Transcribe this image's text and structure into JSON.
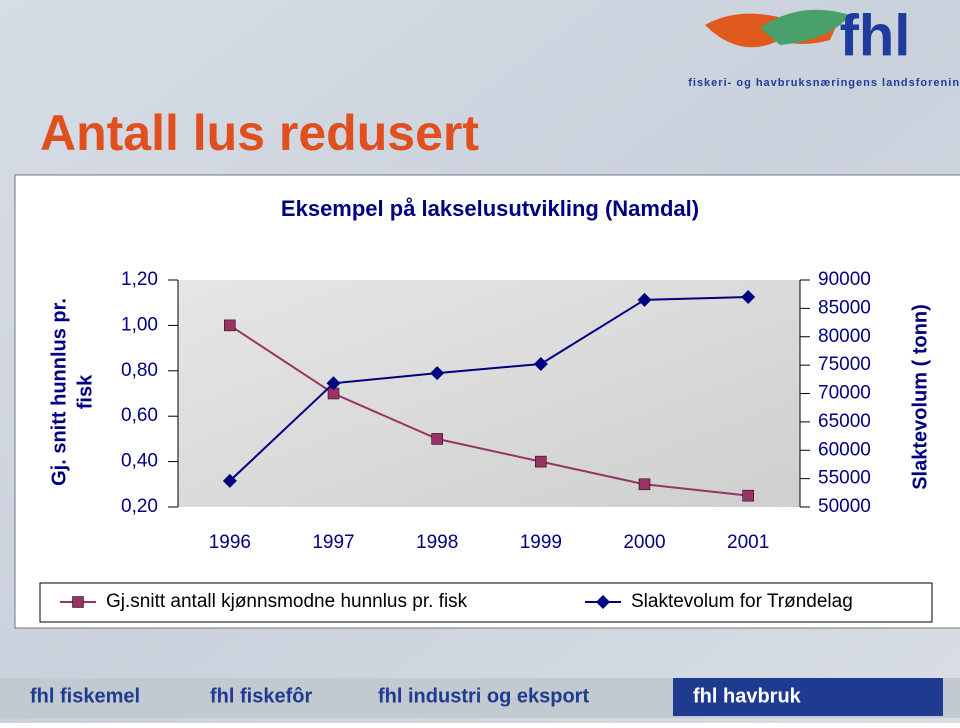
{
  "slide": {
    "title": "Antall lus redusert",
    "logo": "fhl",
    "tagline": "fiskeri- og havbruksnæringens landsforening",
    "footer": [
      "fhl fiskemel",
      "fhl fiskefôr",
      "fhl industri og eksport",
      "fhl havbruk"
    ]
  },
  "chart_data": {
    "type": "line",
    "title": "Eksempel på lakselusutvikling (Namdal)",
    "categories": [
      "1996",
      "1997",
      "1998",
      "1999",
      "2000",
      "2001"
    ],
    "series": [
      {
        "name": "Gj.snitt antall kjønnsmodne hunnlus pr. fisk",
        "color": "#993366",
        "marker": "square",
        "values": [
          1.0,
          0.7,
          0.5,
          0.4,
          0.3,
          0.25
        ]
      },
      {
        "name": "Slaktevolum for Trøndelag",
        "color": "#000080",
        "marker": "diamond",
        "axis": "y2",
        "values": [
          54600,
          71800,
          73600,
          75200,
          86500,
          87000
        ]
      }
    ],
    "ylabel": [
      "Gj. snitt hunnlus pr.",
      "fisk"
    ],
    "y2label": "Slaktevolum ( tonn)",
    "ylim": [
      0.2,
      1.2
    ],
    "yticks": [
      {
        "value": 0.2,
        "label": "0,20"
      },
      {
        "value": 0.4,
        "label": "0,40"
      },
      {
        "value": 0.6,
        "label": "0,60"
      },
      {
        "value": 0.8,
        "label": "0,80"
      },
      {
        "value": 1.0,
        "label": "1,00"
      },
      {
        "value": 1.2,
        "label": "1,20"
      }
    ],
    "y2lim": [
      50000,
      90000
    ],
    "y2ticks": [
      50000,
      55000,
      60000,
      65000,
      70000,
      75000,
      80000,
      85000,
      90000
    ],
    "grid": false
  }
}
